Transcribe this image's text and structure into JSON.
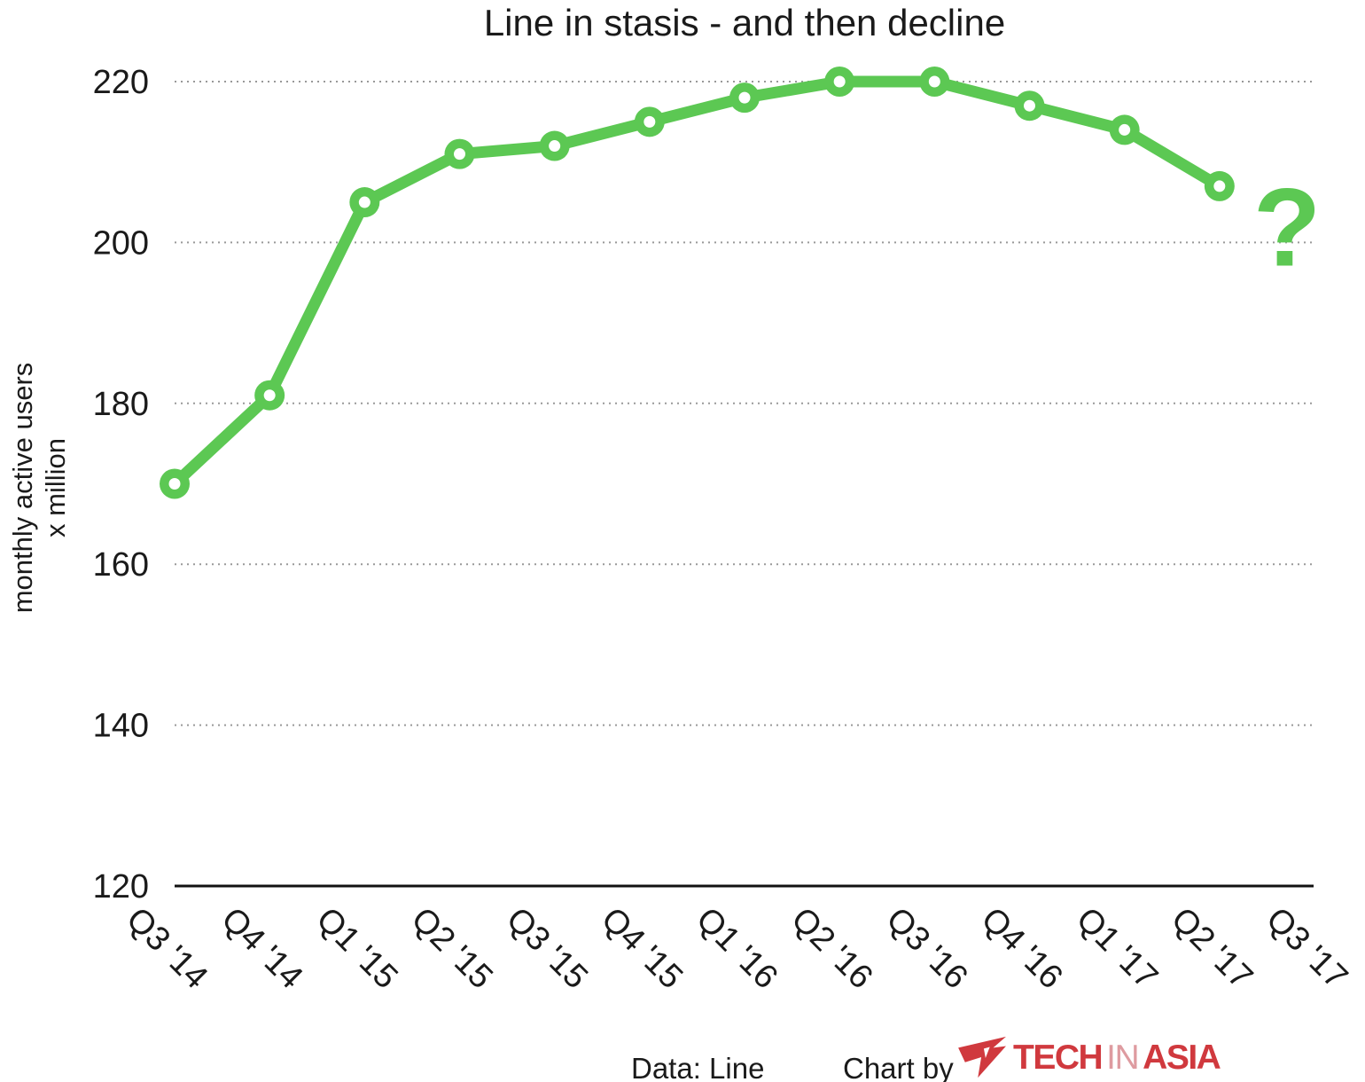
{
  "title": "Line in stasis - and then decline",
  "y_axis": {
    "label_line1": "monthly active users",
    "label_line2": "x million"
  },
  "footer": {
    "data_source": "Data: Line",
    "chart_by": "Chart by",
    "logo_tech": "TECH",
    "logo_in": "IN",
    "logo_asia": "ASIA"
  },
  "colors": {
    "line": "#5cc853",
    "grid": "#999999",
    "axis": "#111111",
    "text": "#1a1a1a",
    "logo_red": "#d0393e",
    "logo_in_red": "#de9ba0"
  },
  "chart_data": {
    "type": "line",
    "title": "Line in stasis - and then decline",
    "ylabel": "monthly active users x million",
    "categories": [
      "Q3 '14",
      "Q4 '14",
      "Q1 '15",
      "Q2 '15",
      "Q3 '15",
      "Q4 '15",
      "Q1 '16",
      "Q2 '16",
      "Q3 '16",
      "Q4 '16",
      "Q1 '17",
      "Q2 '17",
      "Q3 '17"
    ],
    "series": [
      {
        "name": "Line",
        "values": [
          170,
          181,
          205,
          211,
          212,
          215,
          218,
          220,
          220,
          217,
          214,
          207,
          null
        ]
      }
    ],
    "ylim": [
      120,
      220
    ],
    "yticks": [
      120,
      140,
      160,
      180,
      200,
      220
    ],
    "grid": "horizontal-dotted",
    "legend": "none",
    "annotation": {
      "text": "?",
      "category": "Q3 '17"
    }
  }
}
